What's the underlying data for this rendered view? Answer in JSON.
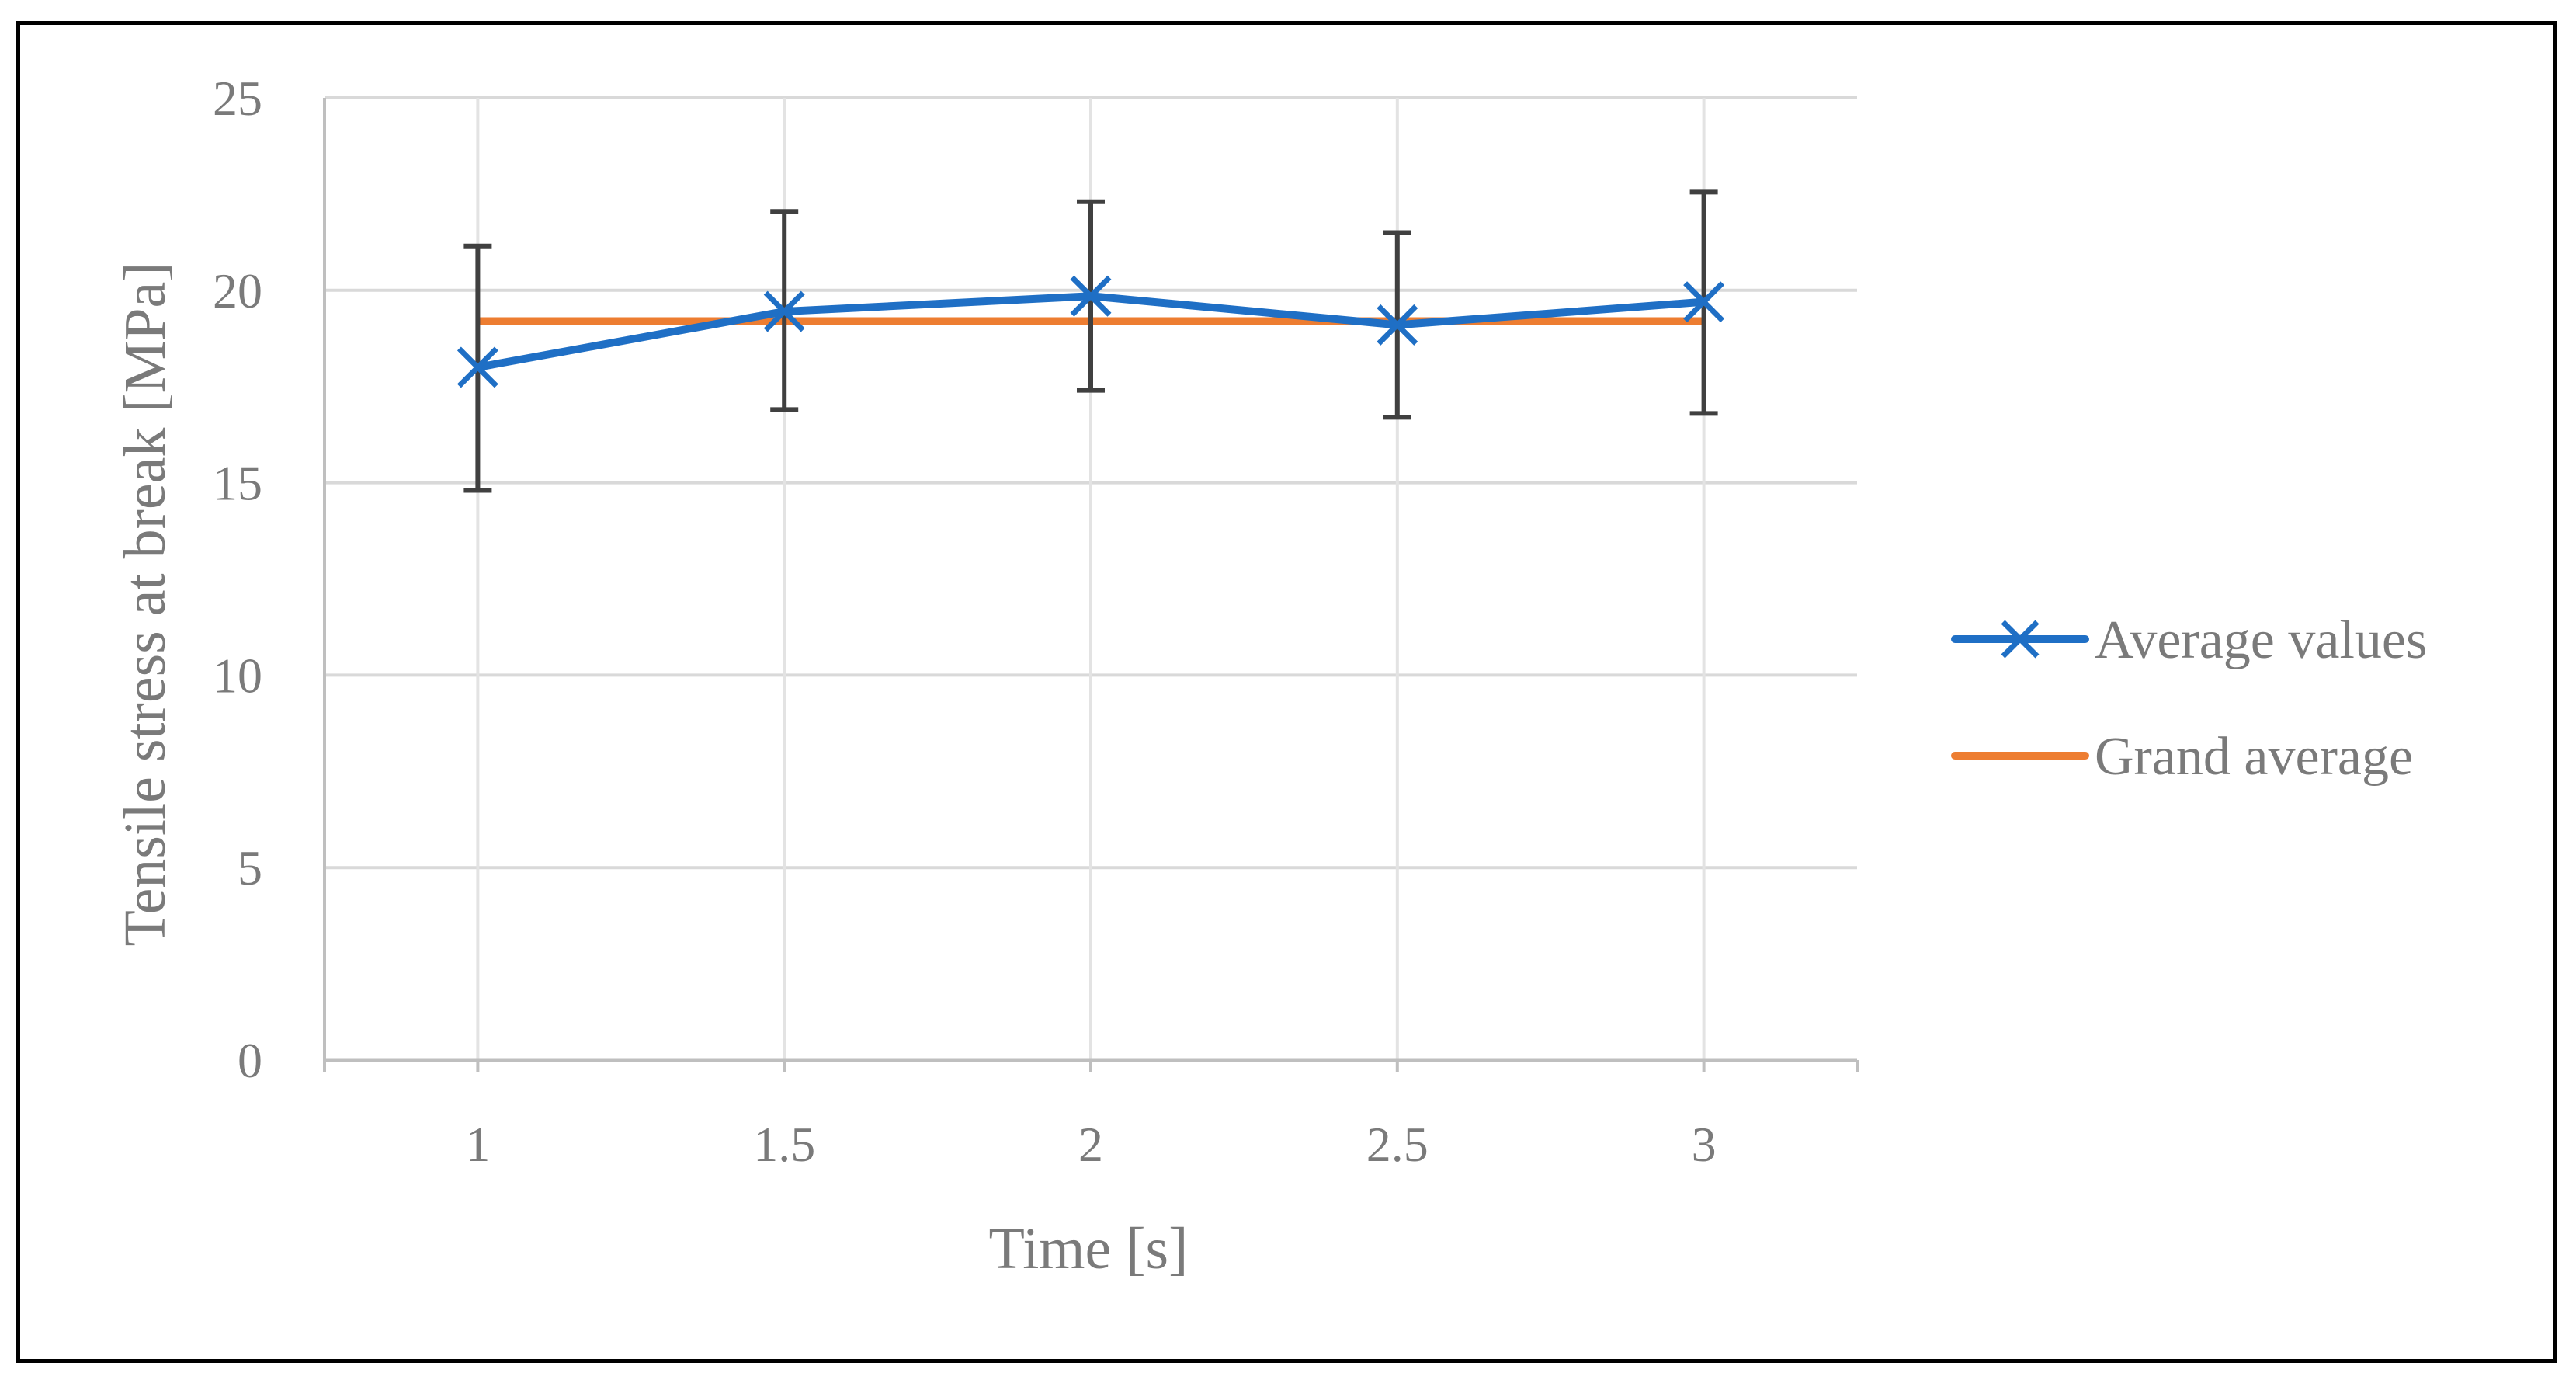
{
  "chart_data": {
    "type": "line",
    "title": "",
    "xlabel": "Time [s]",
    "ylabel": "Tensile stress at break [MPa]",
    "categories": [
      "1",
      "1.5",
      "2",
      "2.5",
      "3"
    ],
    "x": [
      1,
      1.5,
      2,
      2.5,
      3
    ],
    "xlim": [
      0.75,
      3.25
    ],
    "ylim": [
      0,
      25
    ],
    "yticks": [
      0,
      5,
      10,
      15,
      20,
      25
    ],
    "grid": true,
    "legend_position": "right",
    "series": [
      {
        "name": "Average values",
        "color": "#1f6fc5",
        "marker": "x",
        "values": [
          18.0,
          19.45,
          19.85,
          19.1,
          19.7
        ],
        "error_low": [
          14.8,
          16.9,
          17.4,
          16.7,
          16.8
        ],
        "error_high": [
          21.15,
          22.05,
          22.3,
          21.5,
          22.55
        ]
      },
      {
        "name": "Grand average",
        "color": "#ed7d31",
        "marker": "none",
        "values": [
          19.2,
          19.2,
          19.2,
          19.2,
          19.2
        ]
      }
    ]
  }
}
